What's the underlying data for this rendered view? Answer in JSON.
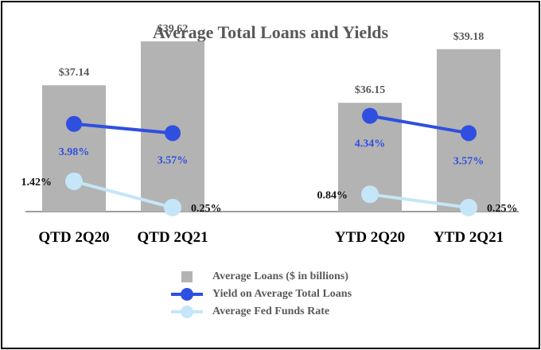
{
  "chart_data": {
    "type": "bar",
    "title": "Average Total Loans and Yields",
    "categories": [
      "QTD 2Q20",
      "QTD 2Q21",
      "YTD 2Q20",
      "YTD 2Q21"
    ],
    "series": [
      {
        "name": "Average Loans ($ in billions)",
        "type": "bar",
        "values": [
          37.14,
          39.62,
          36.15,
          39.18
        ],
        "labels": [
          "$37.14",
          "$39.62",
          "$36.15",
          "$39.18"
        ],
        "color": "#b3b3b3"
      },
      {
        "name": "Yield on Average Total Loans",
        "type": "line",
        "groups": [
          [
            0,
            1
          ],
          [
            2,
            3
          ]
        ],
        "values": [
          3.98,
          3.57,
          4.34,
          3.57
        ],
        "labels": [
          "3.98%",
          "3.57%",
          "4.34%",
          "3.57%"
        ],
        "color": "#2f4fe0"
      },
      {
        "name": "Average Fed Funds Rate",
        "type": "line",
        "groups": [
          [
            0,
            1
          ],
          [
            2,
            3
          ]
        ],
        "values": [
          1.42,
          0.25,
          0.84,
          0.25
        ],
        "labels": [
          "1.42%",
          "0.25%",
          "0.84%",
          "0.25%"
        ],
        "color": "#c5e6f8"
      }
    ],
    "xlabel": "",
    "ylabel": "",
    "grid": false,
    "legend_position": "bottom"
  }
}
